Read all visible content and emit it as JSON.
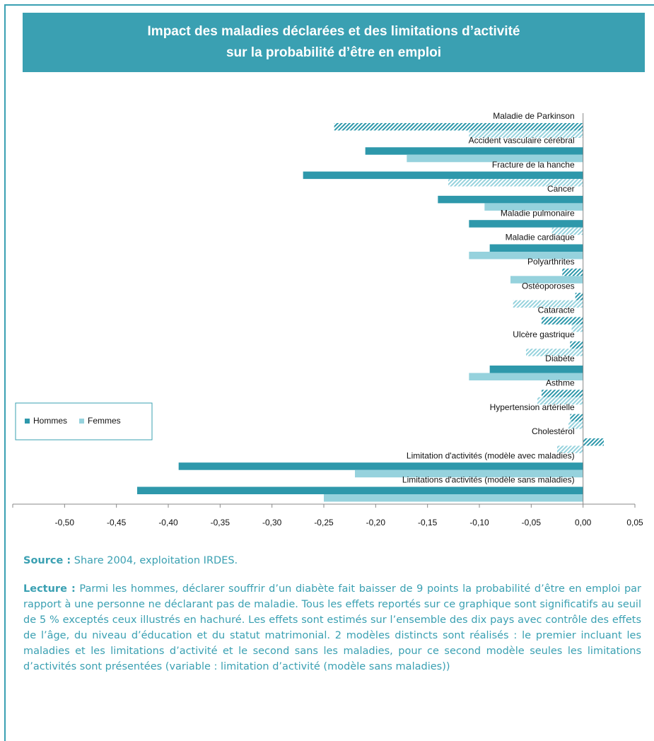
{
  "chart_data": {
    "type": "barh",
    "title": [
      "Impact des maladies déclarées et des limitations d’activité",
      "sur la probabilité d’être en emploi"
    ],
    "categories": [
      "Maladie de Parkinson",
      "Accident vasculaire cérébral",
      "Fracture de la hanche",
      "Cancer",
      "Maladie pulmonaire",
      "Maladie cardiaque",
      "Polyarthrites",
      "Ostéoporoses",
      "Cataracte",
      "Ulcère gastrique",
      "Diabète",
      "Asthme",
      "Hypertension artérielle",
      "Cholestérol",
      "Limitation d'activités (modèle avec maladies)",
      "Limitations d'activités (modèle sans maladies)"
    ],
    "series": [
      {
        "name": "Hommes",
        "color": "#2e98ab",
        "values": [
          -0.24,
          -0.21,
          -0.27,
          -0.14,
          -0.11,
          -0.09,
          -0.02,
          -0.0075,
          -0.04,
          -0.0125,
          -0.09,
          -0.04,
          -0.0125,
          0.02,
          -0.39,
          -0.43
        ],
        "hatched": [
          true,
          false,
          false,
          false,
          false,
          false,
          true,
          true,
          true,
          true,
          false,
          true,
          true,
          true,
          false,
          false
        ]
      },
      {
        "name": "Femmes",
        "color": "#96d2dd",
        "values": [
          -0.11,
          -0.17,
          -0.13,
          -0.095,
          -0.03,
          -0.11,
          -0.07,
          -0.0675,
          -0.011,
          -0.055,
          -0.11,
          -0.044,
          -0.014,
          -0.025,
          -0.22,
          -0.25
        ],
        "hatched": [
          true,
          false,
          true,
          false,
          true,
          false,
          false,
          true,
          true,
          true,
          false,
          true,
          true,
          true,
          false,
          false
        ]
      }
    ],
    "xlim": [
      -0.55,
      0.05
    ],
    "xticks": [
      {
        "value": -0.5,
        "label": "-0,50"
      },
      {
        "value": -0.45,
        "label": "-0,45"
      },
      {
        "value": -0.4,
        "label": "-0,40"
      },
      {
        "value": -0.35,
        "label": "-0,35"
      },
      {
        "value": -0.3,
        "label": "-0,30"
      },
      {
        "value": -0.25,
        "label": "-0,25"
      },
      {
        "value": -0.2,
        "label": "-0,20"
      },
      {
        "value": -0.15,
        "label": "-0,15"
      },
      {
        "value": -0.1,
        "label": "-0,10"
      },
      {
        "value": -0.05,
        "label": "-0,05"
      },
      {
        "value": 0,
        "label": "0,00"
      },
      {
        "value": 0.05,
        "label": "0,05"
      }
    ],
    "legend": "left"
  },
  "source": {
    "label": "Source :",
    "text": "Share 2004, exploitation IRDES."
  },
  "lecture": {
    "label": "Lecture :",
    "text": "Parmi les hommes, déclarer souffrir d’un diabète fait baisser de 9 points la probabilité d’être en emploi par rapport à une personne ne déclarant pas de maladie. Tous les effets reportés sur ce graphique sont significatifs au seuil de 5 % exceptés ceux illustrés en hachuré. Les effets sont estimés sur l’ensemble des dix pays avec contrôle des effets de l’âge, du niveau d’éducation et du statut matrimonial. 2 modèles distincts sont réalisés : le premier incluant les maladies et les limitations d’activité et le second sans les maladies, pour ce second modèle seules les limitations d’activités sont présentées (variable : limitation d’activité (modèle sans maladies))"
  }
}
